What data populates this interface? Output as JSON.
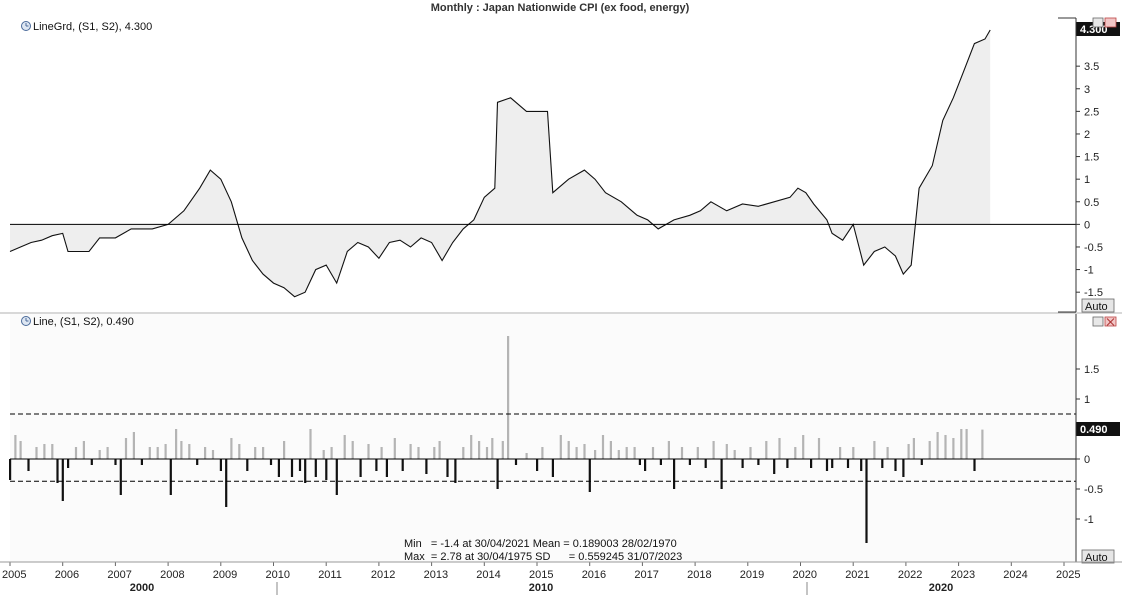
{
  "title": "Monthly : Japan Nationwide CPI (ex food, energy)",
  "panel1": {
    "legend": "LineGrd, (S1, S2), 4.300",
    "last_value": "4.300",
    "auto_label": "Auto",
    "yticks": [
      3.5,
      3,
      2.5,
      2,
      1.5,
      1,
      0.5,
      0,
      -0.5,
      -1,
      -1.5
    ]
  },
  "panel2": {
    "legend": "Line, (S1, S2), 0.490",
    "last_value": "0.490",
    "auto_label": "Auto",
    "yticks": [
      1.5,
      1,
      0.5,
      0,
      -0.5,
      -1
    ],
    "stats": {
      "line1": "Min   = -1.4 at 30/04/2021 Mean = 0.189003 28/02/1970",
      "line2": "Max  = 2.78 at 30/04/1975 SD      = 0.559245 31/07/2023"
    }
  },
  "xaxis": {
    "year_ticks": [
      "2005",
      "2006",
      "2007",
      "2008",
      "2009",
      "2010",
      "2011",
      "2012",
      "2013",
      "2014",
      "2015",
      "2016",
      "2017",
      "2018",
      "2019",
      "2020",
      "2021",
      "2022",
      "2023",
      "2024",
      "2025"
    ],
    "decade_labels": [
      "2000",
      "2010",
      "2020"
    ]
  },
  "chart_data": [
    {
      "type": "area",
      "series_label": "LineGrd, (S1, S2)",
      "x_unit": "year (decimal)",
      "points": [
        [
          2005.0,
          -0.6
        ],
        [
          2005.2,
          -0.5
        ],
        [
          2005.4,
          -0.4
        ],
        [
          2005.6,
          -0.35
        ],
        [
          2005.8,
          -0.25
        ],
        [
          2006.0,
          -0.2
        ],
        [
          2006.1,
          -0.6
        ],
        [
          2006.5,
          -0.6
        ],
        [
          2006.7,
          -0.3
        ],
        [
          2007.0,
          -0.3
        ],
        [
          2007.3,
          -0.1
        ],
        [
          2007.7,
          -0.1
        ],
        [
          2008.0,
          0.0
        ],
        [
          2008.3,
          0.3
        ],
        [
          2008.6,
          0.8
        ],
        [
          2008.8,
          1.2
        ],
        [
          2009.0,
          1.0
        ],
        [
          2009.2,
          0.5
        ],
        [
          2009.4,
          -0.3
        ],
        [
          2009.6,
          -0.8
        ],
        [
          2009.8,
          -1.1
        ],
        [
          2010.0,
          -1.3
        ],
        [
          2010.2,
          -1.4
        ],
        [
          2010.4,
          -1.6
        ],
        [
          2010.6,
          -1.5
        ],
        [
          2010.8,
          -1.0
        ],
        [
          2011.0,
          -0.9
        ],
        [
          2011.2,
          -1.3
        ],
        [
          2011.4,
          -0.6
        ],
        [
          2011.6,
          -0.4
        ],
        [
          2011.8,
          -0.5
        ],
        [
          2012.0,
          -0.75
        ],
        [
          2012.2,
          -0.4
        ],
        [
          2012.4,
          -0.35
        ],
        [
          2012.6,
          -0.5
        ],
        [
          2012.8,
          -0.3
        ],
        [
          2013.0,
          -0.4
        ],
        [
          2013.2,
          -0.8
        ],
        [
          2013.4,
          -0.4
        ],
        [
          2013.6,
          -0.1
        ],
        [
          2013.8,
          0.1
        ],
        [
          2014.0,
          0.6
        ],
        [
          2014.2,
          0.8
        ],
        [
          2014.25,
          2.7
        ],
        [
          2014.5,
          2.8
        ],
        [
          2014.8,
          2.5
        ],
        [
          2015.2,
          2.5
        ],
        [
          2015.3,
          0.7
        ],
        [
          2015.6,
          1.0
        ],
        [
          2015.9,
          1.2
        ],
        [
          2016.1,
          1.0
        ],
        [
          2016.3,
          0.7
        ],
        [
          2016.6,
          0.5
        ],
        [
          2016.9,
          0.2
        ],
        [
          2017.1,
          0.1
        ],
        [
          2017.3,
          -0.1
        ],
        [
          2017.6,
          0.1
        ],
        [
          2017.9,
          0.2
        ],
        [
          2018.1,
          0.3
        ],
        [
          2018.3,
          0.5
        ],
        [
          2018.6,
          0.3
        ],
        [
          2018.9,
          0.45
        ],
        [
          2019.2,
          0.4
        ],
        [
          2019.5,
          0.5
        ],
        [
          2019.8,
          0.6
        ],
        [
          2019.95,
          0.8
        ],
        [
          2020.1,
          0.7
        ],
        [
          2020.25,
          0.45
        ],
        [
          2020.5,
          0.1
        ],
        [
          2020.6,
          -0.2
        ],
        [
          2020.8,
          -0.35
        ],
        [
          2021.0,
          0.0
        ],
        [
          2021.2,
          -0.9
        ],
        [
          2021.4,
          -0.6
        ],
        [
          2021.6,
          -0.5
        ],
        [
          2021.8,
          -0.7
        ],
        [
          2021.95,
          -1.1
        ],
        [
          2022.1,
          -0.9
        ],
        [
          2022.25,
          0.8
        ],
        [
          2022.5,
          1.3
        ],
        [
          2022.7,
          2.3
        ],
        [
          2022.9,
          2.8
        ],
        [
          2023.1,
          3.4
        ],
        [
          2023.3,
          4.0
        ],
        [
          2023.5,
          4.1
        ],
        [
          2023.6,
          4.3
        ]
      ]
    },
    {
      "type": "bar",
      "series_label": "Line, (S1, S2)",
      "mean": 0.189003,
      "upper_band": 0.75,
      "lower_band": -0.37,
      "min": -1.4,
      "max": 2.78,
      "x_unit": "year (decimal)",
      "bars": [
        [
          2005.0,
          -0.35
        ],
        [
          2005.1,
          0.4
        ],
        [
          2005.2,
          0.3
        ],
        [
          2005.35,
          -0.2
        ],
        [
          2005.5,
          0.2
        ],
        [
          2005.65,
          0.25
        ],
        [
          2005.8,
          0.25
        ],
        [
          2005.9,
          -0.4
        ],
        [
          2006.0,
          -0.7
        ],
        [
          2006.1,
          -0.15
        ],
        [
          2006.25,
          0.2
        ],
        [
          2006.4,
          0.3
        ],
        [
          2006.55,
          -0.1
        ],
        [
          2006.7,
          0.15
        ],
        [
          2006.85,
          0.2
        ],
        [
          2007.0,
          -0.1
        ],
        [
          2007.1,
          -0.6
        ],
        [
          2007.2,
          0.35
        ],
        [
          2007.35,
          0.45
        ],
        [
          2007.5,
          -0.1
        ],
        [
          2007.65,
          0.2
        ],
        [
          2007.8,
          0.2
        ],
        [
          2007.95,
          0.25
        ],
        [
          2008.05,
          -0.6
        ],
        [
          2008.15,
          0.5
        ],
        [
          2008.25,
          0.3
        ],
        [
          2008.4,
          0.25
        ],
        [
          2008.55,
          -0.1
        ],
        [
          2008.7,
          0.2
        ],
        [
          2008.85,
          0.15
        ],
        [
          2009.0,
          -0.2
        ],
        [
          2009.1,
          -0.8
        ],
        [
          2009.2,
          0.35
        ],
        [
          2009.35,
          0.25
        ],
        [
          2009.5,
          -0.2
        ],
        [
          2009.65,
          0.2
        ],
        [
          2009.8,
          0.2
        ],
        [
          2009.95,
          -0.1
        ],
        [
          2010.1,
          -0.3
        ],
        [
          2010.2,
          0.3
        ],
        [
          2010.35,
          -0.3
        ],
        [
          2010.5,
          -0.2
        ],
        [
          2010.6,
          -0.4
        ],
        [
          2010.7,
          0.5
        ],
        [
          2010.8,
          -0.3
        ],
        [
          2010.95,
          0.15
        ],
        [
          2011.0,
          -0.35
        ],
        [
          2011.1,
          0.2
        ],
        [
          2011.2,
          -0.6
        ],
        [
          2011.35,
          0.4
        ],
        [
          2011.5,
          0.3
        ],
        [
          2011.65,
          -0.3
        ],
        [
          2011.8,
          0.25
        ],
        [
          2011.95,
          -0.2
        ],
        [
          2012.05,
          0.2
        ],
        [
          2012.15,
          -0.3
        ],
        [
          2012.3,
          0.35
        ],
        [
          2012.45,
          -0.2
        ],
        [
          2012.6,
          0.25
        ],
        [
          2012.75,
          0.2
        ],
        [
          2012.9,
          -0.25
        ],
        [
          2013.05,
          0.2
        ],
        [
          2013.15,
          0.3
        ],
        [
          2013.3,
          -0.3
        ],
        [
          2013.45,
          -0.4
        ],
        [
          2013.6,
          0.2
        ],
        [
          2013.75,
          0.4
        ],
        [
          2013.9,
          0.3
        ],
        [
          2014.05,
          0.2
        ],
        [
          2014.15,
          0.35
        ],
        [
          2014.25,
          -0.5
        ],
        [
          2014.35,
          0.3
        ],
        [
          2014.45,
          2.05
        ],
        [
          2014.6,
          -0.1
        ],
        [
          2014.8,
          0.1
        ],
        [
          2015.0,
          -0.2
        ],
        [
          2015.1,
          0.2
        ],
        [
          2015.3,
          -0.3
        ],
        [
          2015.45,
          0.4
        ],
        [
          2015.6,
          0.3
        ],
        [
          2015.75,
          0.2
        ],
        [
          2015.9,
          0.25
        ],
        [
          2016.0,
          -0.55
        ],
        [
          2016.1,
          0.15
        ],
        [
          2016.25,
          0.4
        ],
        [
          2016.4,
          0.3
        ],
        [
          2016.55,
          0.15
        ],
        [
          2016.7,
          0.2
        ],
        [
          2016.85,
          0.2
        ],
        [
          2016.95,
          -0.1
        ],
        [
          2017.05,
          -0.2
        ],
        [
          2017.2,
          0.2
        ],
        [
          2017.35,
          -0.1
        ],
        [
          2017.5,
          0.3
        ],
        [
          2017.6,
          -0.5
        ],
        [
          2017.75,
          0.2
        ],
        [
          2017.9,
          -0.1
        ],
        [
          2018.05,
          0.2
        ],
        [
          2018.2,
          -0.15
        ],
        [
          2018.35,
          0.3
        ],
        [
          2018.5,
          -0.5
        ],
        [
          2018.6,
          0.25
        ],
        [
          2018.75,
          0.15
        ],
        [
          2018.9,
          -0.15
        ],
        [
          2019.05,
          0.2
        ],
        [
          2019.2,
          -0.1
        ],
        [
          2019.35,
          0.3
        ],
        [
          2019.5,
          -0.25
        ],
        [
          2019.6,
          0.35
        ],
        [
          2019.75,
          -0.15
        ],
        [
          2019.9,
          0.2
        ],
        [
          2020.05,
          0.4
        ],
        [
          2020.2,
          -0.15
        ],
        [
          2020.35,
          0.35
        ],
        [
          2020.5,
          -0.2
        ],
        [
          2020.6,
          -0.15
        ],
        [
          2020.75,
          0.2
        ],
        [
          2020.9,
          -0.15
        ],
        [
          2021.0,
          0.2
        ],
        [
          2021.15,
          -0.2
        ],
        [
          2021.25,
          -1.4
        ],
        [
          2021.4,
          0.3
        ],
        [
          2021.55,
          -0.15
        ],
        [
          2021.65,
          0.2
        ],
        [
          2021.8,
          -0.2
        ],
        [
          2021.95,
          -0.3
        ],
        [
          2022.05,
          0.25
        ],
        [
          2022.15,
          0.35
        ],
        [
          2022.3,
          -0.1
        ],
        [
          2022.45,
          0.3
        ],
        [
          2022.6,
          0.45
        ],
        [
          2022.75,
          0.4
        ],
        [
          2022.9,
          0.35
        ],
        [
          2023.05,
          0.5
        ],
        [
          2023.15,
          0.5
        ],
        [
          2023.3,
          -0.2
        ],
        [
          2023.45,
          0.49
        ]
      ]
    }
  ]
}
